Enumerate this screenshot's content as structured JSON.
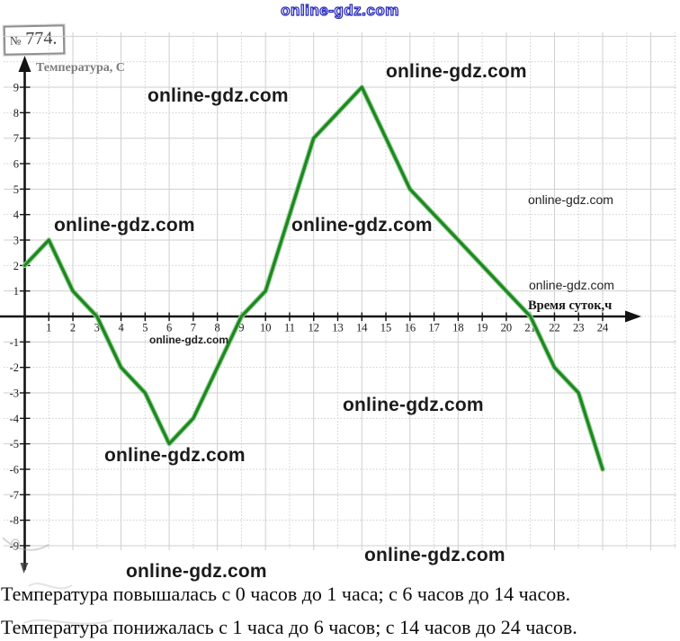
{
  "header": {
    "problem_number": "№ 774."
  },
  "watermark": {
    "text": "online-gdz.com"
  },
  "chart_data": {
    "type": "line",
    "title": "",
    "xlabel": "Время суток,ч",
    "ylabel": "Температура, С",
    "x": [
      0,
      1,
      2,
      3,
      4,
      5,
      6,
      7,
      8,
      9,
      10,
      11,
      12,
      13,
      14,
      15,
      16,
      17,
      18,
      19,
      20,
      21,
      22,
      23,
      24
    ],
    "y": [
      2,
      3,
      1,
      0,
      -2,
      -3,
      -5,
      -4,
      -2,
      0,
      1,
      4,
      7,
      8,
      9,
      7,
      5,
      4,
      3,
      2,
      1,
      0,
      -2,
      -3,
      -6
    ],
    "xlim": [
      0,
      24
    ],
    "ylim": [
      -9,
      9
    ],
    "xticks": [
      1,
      2,
      3,
      4,
      5,
      6,
      7,
      8,
      9,
      10,
      11,
      12,
      13,
      14,
      15,
      16,
      17,
      18,
      19,
      20,
      21,
      22,
      23,
      24
    ],
    "yticks": [
      9,
      8,
      7,
      6,
      5,
      4,
      3,
      2,
      1,
      -1,
      -2,
      -3,
      -4,
      -5,
      -6,
      -7,
      -8,
      -9
    ],
    "grid": true,
    "legend": "none",
    "line_color": "#1f8721",
    "line_halo_color": "#98d298",
    "axis_color": "#131313",
    "grid_color": "#cfcfcf",
    "tick_label_color": "#1b1b1b",
    "ylabel_color": "#7d7d7d",
    "xlabel_color": "#141414"
  },
  "footer": {
    "line1": "Температура повышалась с 0 часов до 1 часа; с 6 часов до 14 часов.",
    "line2": "Температура понижалась с 1 часа до 6 часов; с 14 часов до 24 часов."
  }
}
